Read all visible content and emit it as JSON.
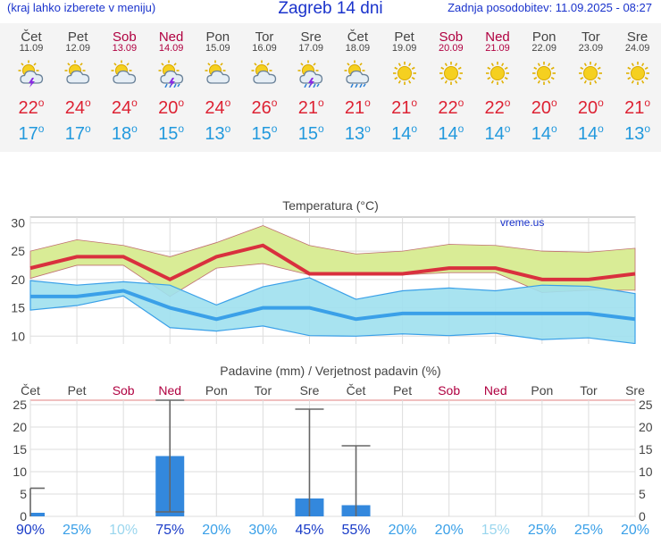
{
  "header": {
    "hint": "(kraj lahko izberete v meniju)",
    "title": "Zagreb 14 dni",
    "updated": "Zadnja posodobitev: 11.09.2025 - 08:27"
  },
  "days": [
    {
      "name": "Čet",
      "date": "11.09",
      "weekend": false,
      "icon": "sun-cloud-thunder-icon",
      "max": "22",
      "min": "17"
    },
    {
      "name": "Pet",
      "date": "12.09",
      "weekend": false,
      "icon": "sun-cloud-icon",
      "max": "24",
      "min": "17"
    },
    {
      "name": "Sob",
      "date": "13.09",
      "weekend": true,
      "icon": "sun-cloud-icon",
      "max": "24",
      "min": "18"
    },
    {
      "name": "Ned",
      "date": "14.09",
      "weekend": true,
      "icon": "sun-cloud-rain-thunder-icon",
      "max": "20",
      "min": "15"
    },
    {
      "name": "Pon",
      "date": "15.09",
      "weekend": false,
      "icon": "sun-cloud-icon",
      "max": "24",
      "min": "13"
    },
    {
      "name": "Tor",
      "date": "16.09",
      "weekend": false,
      "icon": "sun-cloud-icon",
      "max": "26",
      "min": "15"
    },
    {
      "name": "Sre",
      "date": "17.09",
      "weekend": false,
      "icon": "sun-cloud-rain-thunder-icon",
      "max": "21",
      "min": "15"
    },
    {
      "name": "Čet",
      "date": "18.09",
      "weekend": false,
      "icon": "sun-cloud-rain-icon",
      "max": "21",
      "min": "13"
    },
    {
      "name": "Pet",
      "date": "19.09",
      "weekend": false,
      "icon": "sun-icon",
      "max": "21",
      "min": "14"
    },
    {
      "name": "Sob",
      "date": "20.09",
      "weekend": true,
      "icon": "sun-icon",
      "max": "22",
      "min": "14"
    },
    {
      "name": "Ned",
      "date": "21.09",
      "weekend": true,
      "icon": "sun-icon",
      "max": "22",
      "min": "14"
    },
    {
      "name": "Pon",
      "date": "22.09",
      "weekend": false,
      "icon": "sun-icon",
      "max": "20",
      "min": "14"
    },
    {
      "name": "Tor",
      "date": "23.09",
      "weekend": false,
      "icon": "sun-icon",
      "max": "20",
      "min": "14"
    },
    {
      "name": "Sre",
      "date": "24.09",
      "weekend": false,
      "icon": "sun-icon",
      "max": "21",
      "min": "13"
    }
  ],
  "chart_data": [
    {
      "type": "line",
      "title": "Temperatura (°C)",
      "watermark": "vreme.us",
      "ylim": [
        8,
        31
      ],
      "yticks": [
        10,
        15,
        20,
        25,
        30
      ],
      "grid": true,
      "categories": [
        "Čet",
        "Pet",
        "Sob",
        "Ned",
        "Pon",
        "Tor",
        "Sre",
        "Čet",
        "Pet",
        "Sob",
        "Ned",
        "Pon",
        "Tor",
        "Sre"
      ],
      "series": [
        {
          "values": [
            22,
            24,
            24,
            20,
            24,
            26,
            21,
            21,
            21,
            22,
            22,
            20,
            20,
            21
          ]
        },
        {
          "values": [
            17,
            17,
            18,
            15,
            13,
            15,
            15,
            13,
            14,
            14,
            14,
            14,
            14,
            13
          ]
        },
        {
          "values": [
            25,
            27,
            26,
            24,
            26.5,
            29.5,
            26,
            24.5,
            25,
            26.2,
            26,
            25,
            24.8,
            25.5
          ]
        },
        {
          "values": [
            20.2,
            22.5,
            22.5,
            17,
            22,
            22.8,
            20.8,
            20.8,
            20.8,
            21.2,
            21.2,
            17.7,
            18.1,
            18.1
          ]
        },
        {
          "values": [
            19.8,
            19,
            19.6,
            19,
            15.5,
            18.7,
            20.3,
            16.5,
            18,
            18.5,
            18,
            19,
            18.8,
            17.5
          ]
        },
        {
          "values": [
            14.6,
            15.4,
            17.1,
            11.5,
            10.9,
            11.8,
            10.1,
            10,
            10.4,
            10.1,
            10.5,
            9.4,
            9.7,
            8.7
          ]
        }
      ]
    },
    {
      "type": "bar",
      "title": "Padavine (mm) / Verjetnost padavin (%)",
      "ylim": [
        0,
        26
      ],
      "yticks": [
        0,
        5,
        10,
        15,
        20,
        25
      ],
      "categories": [
        "Čet",
        "Pet",
        "Sob",
        "Ned",
        "Pon",
        "Tor",
        "Sre",
        "Čet",
        "Pet",
        "Sob",
        "Ned",
        "Pon",
        "Tor",
        "Sre"
      ],
      "values": [
        0.8,
        0,
        0,
        13.5,
        0,
        0,
        4,
        2.5,
        0,
        0,
        0,
        0,
        0,
        0
      ],
      "ranges": [
        [
          0,
          6.3
        ],
        null,
        null,
        [
          1,
          26
        ],
        null,
        null,
        [
          0,
          24
        ],
        [
          0,
          15.8
        ],
        null,
        null,
        null,
        null,
        null,
        null
      ],
      "probability": [
        "90%",
        "25%",
        "10%",
        "75%",
        "20%",
        "30%",
        "45%",
        "55%",
        "20%",
        "20%",
        "15%",
        "25%",
        "25%",
        "20%"
      ],
      "probability_values": [
        90,
        25,
        10,
        75,
        20,
        30,
        45,
        55,
        20,
        20,
        15,
        25,
        25,
        20
      ]
    }
  ],
  "colors": {
    "text_blue": "#1a33cc",
    "weekend": "#b00040",
    "max_line": "#d9303e",
    "min_line": "#3aa0e8",
    "max_band": "#d9ec96",
    "min_band": "#9ee0ee",
    "overlap": "#88d088",
    "bar": "#3388dd"
  }
}
